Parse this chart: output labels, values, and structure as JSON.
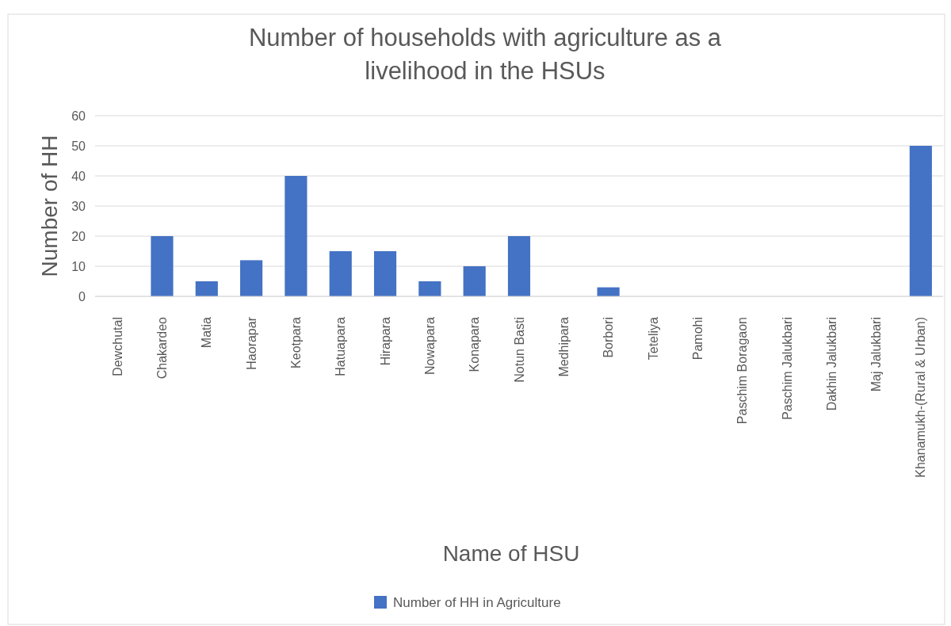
{
  "chart_data": {
    "type": "bar",
    "title": "Number of households with agriculture as a livelihood in the HSUs",
    "xlabel": "Name of HSU",
    "ylabel": "Number of HH",
    "categories": [
      "Dewchutal",
      "Chakardeo",
      "Matia",
      "Haorapar",
      "Keotpara",
      "Hatuapara",
      "Hirapara",
      "Nowapara",
      "Konapara",
      "Notun Basti",
      "Medhipara",
      "Borbori",
      "Teteliya",
      "Pamohi",
      "Paschim Boragaon",
      "Paschim Jalukbari",
      "Dakhin Jalukbari",
      "Maj Jalukbari",
      "Khanamukh-(Rural & Urban)"
    ],
    "series": [
      {
        "name": "Number of HH in Agriculture",
        "color": "#4472c4",
        "values": [
          0,
          20,
          5,
          12,
          40,
          15,
          15,
          5,
          10,
          20,
          0,
          3,
          0,
          0,
          0,
          0,
          0,
          0,
          50
        ]
      }
    ],
    "ylim": [
      0,
      60
    ],
    "yticks": [
      0,
      10,
      20,
      30,
      40,
      50,
      60
    ],
    "grid": "y",
    "legend": "bottom"
  }
}
